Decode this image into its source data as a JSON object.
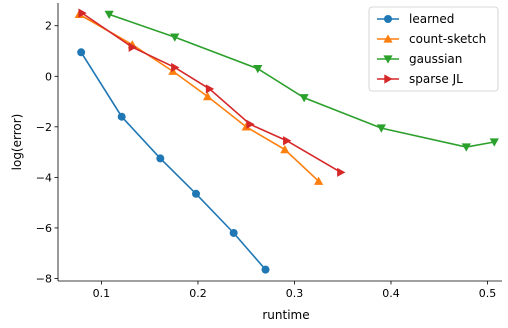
{
  "chart_data": {
    "type": "line",
    "xlabel": "runtime",
    "ylabel": "log(error)",
    "xlim": [
      0.055,
      0.515
    ],
    "ylim": [
      -8.1,
      2.9
    ],
    "xticks": [
      0.1,
      0.2,
      0.3,
      0.4,
      0.5
    ],
    "yticks": [
      -8,
      -6,
      -4,
      -2,
      0,
      2
    ],
    "xtick_labels": [
      "0.1",
      "0.2",
      "0.3",
      "0.4",
      "0.5"
    ],
    "ytick_labels": [
      "−8",
      "−6",
      "−4",
      "−2",
      "0",
      "2"
    ],
    "grid": false,
    "legend_position": "top-right",
    "series": [
      {
        "name": "learned",
        "color": "#1f77b4",
        "marker": "circle",
        "x": [
          0.079,
          0.121,
          0.161,
          0.198,
          0.237,
          0.27
        ],
        "y": [
          0.95,
          -1.6,
          -3.25,
          -4.65,
          -6.2,
          -7.65
        ]
      },
      {
        "name": "count-sketch",
        "color": "#ff7f0e",
        "marker": "triangle-up",
        "x": [
          0.077,
          0.132,
          0.174,
          0.21,
          0.25,
          0.29,
          0.325
        ],
        "y": [
          2.45,
          1.25,
          0.2,
          -0.8,
          -2.0,
          -2.9,
          -4.15
        ]
      },
      {
        "name": "gaussian",
        "color": "#2ca02c",
        "marker": "triangle-down",
        "x": [
          0.108,
          0.176,
          0.262,
          0.31,
          0.39,
          0.478,
          0.507
        ],
        "y": [
          2.45,
          1.55,
          0.3,
          -0.85,
          -2.05,
          -2.8,
          -2.6
        ]
      },
      {
        "name": "sparse JL",
        "color": "#d62728",
        "marker": "triangle-right",
        "x": [
          0.08,
          0.132,
          0.176,
          0.212,
          0.254,
          0.292,
          0.348
        ],
        "y": [
          2.5,
          1.15,
          0.35,
          -0.5,
          -1.9,
          -2.55,
          -3.8
        ]
      }
    ]
  }
}
